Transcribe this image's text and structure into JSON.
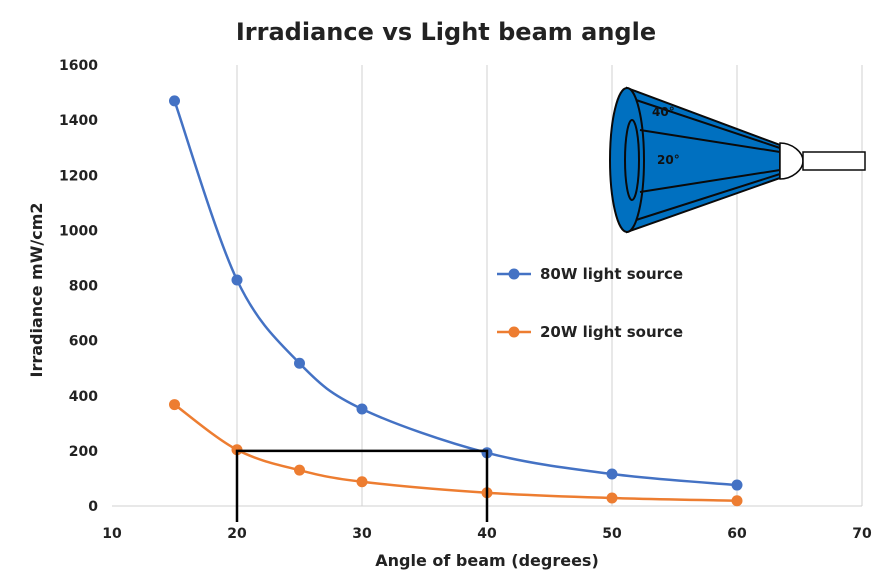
{
  "chart_data": {
    "type": "line",
    "title": "Irradiance vs Light beam angle",
    "xlabel": "Angle of beam (degrees)",
    "ylabel": "Irradiance  mW/cm2",
    "xlim": [
      10,
      70
    ],
    "ylim": [
      0,
      1600
    ],
    "x_ticks": [
      "10",
      "20",
      "30",
      "40",
      "50",
      "60",
      "70"
    ],
    "y_ticks": [
      "0",
      "200",
      "400",
      "600",
      "800",
      "1000",
      "1200",
      "1400",
      "1600"
    ],
    "grid": "vertical",
    "legend_position": "right-middle",
    "series": [
      {
        "name": "80W light source",
        "color": "#4472C4",
        "x": [
          15,
          20,
          25,
          30,
          40,
          50,
          60
        ],
        "y": [
          1470,
          820,
          518,
          352,
          193,
          116,
          76
        ]
      },
      {
        "name": "20W light source",
        "color": "#ED7D31",
        "x": [
          15,
          20,
          25,
          30,
          40,
          50,
          60
        ],
        "y": [
          368,
          204,
          130,
          88,
          48,
          29,
          19
        ]
      }
    ],
    "annotation_box": {
      "x": [
        20,
        40
      ],
      "y": [
        0,
        200
      ],
      "color": "#000000"
    },
    "inset": {
      "beam_color": "#0070C0",
      "labels": [
        "40°",
        "20°"
      ]
    }
  }
}
